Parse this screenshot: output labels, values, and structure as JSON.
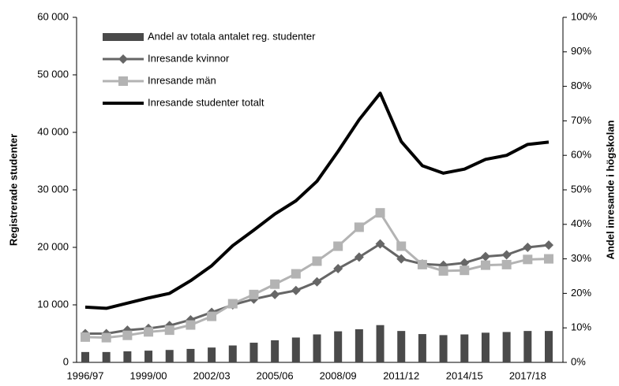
{
  "chart_data": {
    "type": "combo",
    "categories": [
      "1996/97",
      null,
      null,
      "1999/00",
      null,
      null,
      "2002/03",
      null,
      null,
      "2005/06",
      null,
      null,
      "2008/09",
      null,
      null,
      "2011/12",
      null,
      null,
      "2014/15",
      null,
      null,
      "2017/18",
      null
    ],
    "series": [
      {
        "name": "Andel av totala antalet reg. studenter",
        "type": "bar",
        "axis": "y2",
        "color": "#4a4a4a",
        "values": [
          3.0,
          3.0,
          3.2,
          3.4,
          3.6,
          3.9,
          4.3,
          4.9,
          5.7,
          6.4,
          7.2,
          8.1,
          9.0,
          9.6,
          10.8,
          9.1,
          8.2,
          7.9,
          8.1,
          8.6,
          8.8,
          9.1,
          9.1
        ]
      },
      {
        "name": "Inresande kvinnor",
        "type": "line",
        "marker": "diamond",
        "color": "#666666",
        "values": [
          5000,
          5000,
          5600,
          5900,
          6400,
          7400,
          8700,
          10000,
          11000,
          11800,
          12500,
          14000,
          16300,
          18300,
          20600,
          18000,
          17100,
          16900,
          17300,
          18400,
          18700,
          20000,
          20400
        ]
      },
      {
        "name": "Inresande män",
        "type": "line",
        "marker": "square",
        "color": "#b3b3b3",
        "values": [
          4400,
          4300,
          4700,
          5300,
          5600,
          6500,
          8000,
          10200,
          11800,
          13600,
          15400,
          17600,
          20200,
          23500,
          26000,
          20200,
          17000,
          15900,
          16000,
          16900,
          17000,
          17900,
          18000
        ]
      },
      {
        "name": "Inresande studenter totalt",
        "type": "line",
        "marker": "none",
        "color": "#000000",
        "values": [
          9600,
          9400,
          10300,
          11200,
          12000,
          14200,
          16800,
          20300,
          23000,
          25800,
          28100,
          31500,
          36700,
          42200,
          46800,
          38400,
          34200,
          32900,
          33600,
          35300,
          36000,
          37900,
          38300
        ]
      }
    ],
    "ylabel": "Registrerade studenter",
    "y2label": "Andel inresande i högskolan",
    "ylim": [
      0,
      60000
    ],
    "yticks": [
      0,
      {
        "value": 10000,
        "label": "10 000"
      },
      {
        "value": 20000,
        "label": "20 000"
      },
      {
        "value": 30000,
        "label": "30 000"
      },
      {
        "value": 40000,
        "label": "40 000"
      },
      {
        "value": 50000,
        "label": "50 000"
      },
      {
        "value": 60000,
        "label": "60 000"
      }
    ],
    "y2lim": [
      0,
      100
    ],
    "y2ticks": [
      {
        "value": 0,
        "label": "0%"
      },
      {
        "value": 10,
        "label": "10%"
      },
      {
        "value": 20,
        "label": "20%"
      },
      {
        "value": 30,
        "label": "30%"
      },
      {
        "value": 40,
        "label": "40%"
      },
      {
        "value": 50,
        "label": "50%"
      },
      {
        "value": 60,
        "label": "60%"
      },
      {
        "value": 70,
        "label": "70%"
      },
      {
        "value": 80,
        "label": "80%"
      },
      {
        "value": 90,
        "label": "90%"
      },
      {
        "value": 100,
        "label": "100%"
      }
    ],
    "legend": "upper left",
    "grid": false
  }
}
